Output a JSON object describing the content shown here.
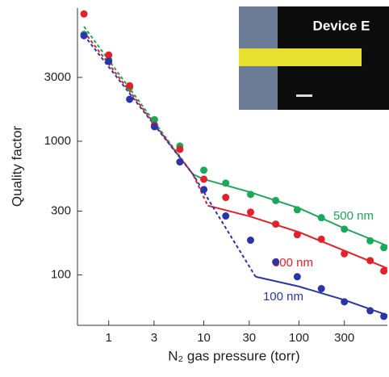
{
  "chart_data": {
    "type": "scatter",
    "x_label": "N₂ gas pressure (torr)",
    "y_label": "Quality factor",
    "inset_label": "Device E",
    "xscale": "log",
    "yscale": "log",
    "xlim": [
      0.47,
      850
    ],
    "ylim": [
      42,
      9900
    ],
    "xticks": [
      1,
      3,
      10,
      30,
      100,
      300
    ],
    "yticks": [
      100,
      300,
      1000,
      3000
    ],
    "x": [
      0.55,
      1,
      1.66,
      3.03,
      5.6,
      10,
      17,
      31,
      57,
      96,
      172,
      300,
      560,
      780
    ],
    "series": [
      {
        "name": "500 nm",
        "color": "#1aa85a",
        "values": [
          6300,
          4060,
          2530,
          1450,
          920,
          607,
          486,
          400,
          360,
          307,
          268,
          220,
          180,
          160
        ]
      },
      {
        "name": "300 nm",
        "color": "#e4202a",
        "values": [
          8950,
          4410,
          2600,
          1320,
          870,
          520,
          380,
          295,
          240,
          200,
          185,
          144,
          128,
          107
        ]
      },
      {
        "name": "100 nm",
        "color": "#2b35a8",
        "values": [
          6150,
          3950,
          2060,
          1285,
          700,
          435,
          276,
          182,
          125,
          97,
          79,
          63,
          54,
          49
        ]
      }
    ],
    "fits": [
      {
        "color": "#1aa85a",
        "style": "dashed",
        "x": [
          0.55,
          7.7
        ],
        "y": [
          7200,
          565
        ]
      },
      {
        "color": "#1aa85a",
        "style": "solid",
        "x": [
          7.7,
          10,
          30,
          100,
          300,
          850
        ],
        "y": [
          565,
          520,
          418,
          316,
          223,
          165
        ]
      },
      {
        "color": "#e4202a",
        "style": "dashed",
        "x": [
          0.55,
          7.7,
          11
        ],
        "y": [
          6600,
          565,
          330
        ]
      },
      {
        "color": "#e4202a",
        "style": "solid",
        "x": [
          11,
          30,
          100,
          300,
          850
        ],
        "y": [
          330,
          275,
          209,
          152,
          112
        ]
      },
      {
        "color": "#2b35a8",
        "style": "dashed",
        "x": [
          0.55,
          7.7,
          35
        ],
        "y": [
          6200,
          565,
          97
        ]
      },
      {
        "color": "#2b35a8",
        "style": "solid",
        "x": [
          35,
          100,
          300,
          850
        ],
        "y": [
          97,
          82,
          65,
          50
        ]
      }
    ]
  }
}
